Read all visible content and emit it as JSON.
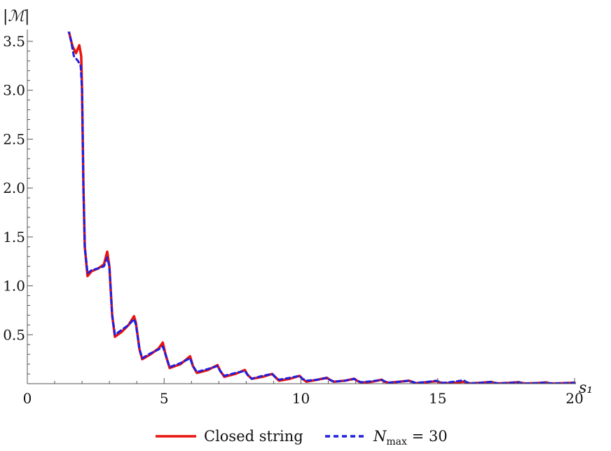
{
  "chart_data": {
    "type": "line",
    "title": "",
    "xlabel": "s₁",
    "ylabel": "|ℳ|",
    "xlim": [
      0,
      20
    ],
    "ylim": [
      0,
      3.6
    ],
    "x_ticks": [
      0,
      5,
      10,
      15,
      20
    ],
    "x_tick_labels": [
      "0",
      "5",
      "10",
      "15",
      "20"
    ],
    "y_ticks": [
      0.5,
      1.0,
      1.5,
      2.0,
      2.5,
      3.0,
      3.5
    ],
    "y_tick_labels": [
      "0.5",
      "1.0",
      "1.5",
      "2.0",
      "2.5",
      "3.0",
      "3.5"
    ],
    "grid": false,
    "legend_position": "bottom-center",
    "series": [
      {
        "name": "Closed string",
        "color": "#e8140f",
        "style": "solid",
        "points": [
          [
            1.5,
            3.62
          ],
          [
            1.65,
            3.45
          ],
          [
            1.78,
            3.38
          ],
          [
            1.9,
            3.46
          ],
          [
            1.97,
            3.35
          ],
          [
            2.0,
            3.0
          ],
          [
            2.05,
            2.0
          ],
          [
            2.1,
            1.4
          ],
          [
            2.2,
            1.1
          ],
          [
            2.35,
            1.15
          ],
          [
            2.6,
            1.18
          ],
          [
            2.8,
            1.22
          ],
          [
            2.92,
            1.35
          ],
          [
            3.0,
            1.2
          ],
          [
            3.1,
            0.7
          ],
          [
            3.2,
            0.48
          ],
          [
            3.45,
            0.53
          ],
          [
            3.7,
            0.6
          ],
          [
            3.9,
            0.69
          ],
          [
            3.97,
            0.62
          ],
          [
            4.1,
            0.35
          ],
          [
            4.2,
            0.25
          ],
          [
            4.5,
            0.3
          ],
          [
            4.8,
            0.36
          ],
          [
            4.95,
            0.42
          ],
          [
            5.05,
            0.3
          ],
          [
            5.2,
            0.16
          ],
          [
            5.6,
            0.2
          ],
          [
            5.95,
            0.28
          ],
          [
            6.05,
            0.18
          ],
          [
            6.2,
            0.11
          ],
          [
            6.6,
            0.14
          ],
          [
            6.95,
            0.19
          ],
          [
            7.05,
            0.13
          ],
          [
            7.2,
            0.07
          ],
          [
            7.6,
            0.1
          ],
          [
            7.95,
            0.14
          ],
          [
            8.05,
            0.09
          ],
          [
            8.2,
            0.05
          ],
          [
            8.6,
            0.07
          ],
          [
            8.95,
            0.1
          ],
          [
            9.05,
            0.07
          ],
          [
            9.2,
            0.03
          ],
          [
            9.6,
            0.05
          ],
          [
            9.95,
            0.08
          ],
          [
            10.05,
            0.05
          ],
          [
            10.2,
            0.02
          ],
          [
            10.6,
            0.04
          ],
          [
            10.95,
            0.06
          ],
          [
            11.05,
            0.04
          ],
          [
            11.2,
            0.02
          ],
          [
            11.6,
            0.03
          ],
          [
            11.95,
            0.05
          ],
          [
            12.05,
            0.03
          ],
          [
            12.2,
            0.01
          ],
          [
            12.6,
            0.02
          ],
          [
            12.95,
            0.04
          ],
          [
            13.05,
            0.02
          ],
          [
            13.2,
            0.01
          ],
          [
            13.6,
            0.02
          ],
          [
            13.95,
            0.03
          ],
          [
            14.05,
            0.02
          ],
          [
            14.2,
            0.005
          ],
          [
            14.6,
            0.015
          ],
          [
            14.95,
            0.025
          ],
          [
            15.05,
            0.015
          ],
          [
            15.2,
            0.005
          ],
          [
            15.6,
            0.01
          ],
          [
            15.95,
            0.02
          ],
          [
            16.05,
            0.01
          ],
          [
            16.2,
            0.003
          ],
          [
            16.6,
            0.01
          ],
          [
            16.95,
            0.018
          ],
          [
            17.05,
            0.01
          ],
          [
            17.2,
            0.003
          ],
          [
            17.6,
            0.008
          ],
          [
            17.95,
            0.015
          ],
          [
            18.05,
            0.008
          ],
          [
            18.2,
            0.002
          ],
          [
            18.6,
            0.006
          ],
          [
            18.95,
            0.012
          ],
          [
            19.05,
            0.006
          ],
          [
            19.2,
            0.002
          ],
          [
            19.6,
            0.005
          ],
          [
            20.0,
            0.01
          ]
        ]
      },
      {
        "name": "N_max = 30",
        "color": "#1f1fe0",
        "style": "dashed",
        "points": [
          [
            1.5,
            3.62
          ],
          [
            1.6,
            3.5
          ],
          [
            1.7,
            3.35
          ],
          [
            1.85,
            3.3
          ],
          [
            1.95,
            3.25
          ],
          [
            2.0,
            3.0
          ],
          [
            2.05,
            2.0
          ],
          [
            2.1,
            1.4
          ],
          [
            2.2,
            1.13
          ],
          [
            2.35,
            1.16
          ],
          [
            2.6,
            1.18
          ],
          [
            2.8,
            1.2
          ],
          [
            2.92,
            1.29
          ],
          [
            3.0,
            1.2
          ],
          [
            3.1,
            0.7
          ],
          [
            3.2,
            0.5
          ],
          [
            3.45,
            0.55
          ],
          [
            3.7,
            0.6
          ],
          [
            3.9,
            0.66
          ],
          [
            3.97,
            0.6
          ],
          [
            4.1,
            0.35
          ],
          [
            4.2,
            0.26
          ],
          [
            4.5,
            0.31
          ],
          [
            4.8,
            0.35
          ],
          [
            4.95,
            0.38
          ],
          [
            5.05,
            0.3
          ],
          [
            5.2,
            0.17
          ],
          [
            5.6,
            0.21
          ],
          [
            5.95,
            0.26
          ],
          [
            6.05,
            0.18
          ],
          [
            6.2,
            0.12
          ],
          [
            6.6,
            0.15
          ],
          [
            6.95,
            0.18
          ],
          [
            7.05,
            0.13
          ],
          [
            7.2,
            0.08
          ],
          [
            7.6,
            0.11
          ],
          [
            7.95,
            0.13
          ],
          [
            8.05,
            0.09
          ],
          [
            8.2,
            0.05
          ],
          [
            8.6,
            0.08
          ],
          [
            8.95,
            0.1
          ],
          [
            9.05,
            0.07
          ],
          [
            9.2,
            0.04
          ],
          [
            9.6,
            0.06
          ],
          [
            9.95,
            0.08
          ],
          [
            10.05,
            0.05
          ],
          [
            10.2,
            0.03
          ],
          [
            10.6,
            0.04
          ],
          [
            10.95,
            0.06
          ],
          [
            11.05,
            0.04
          ],
          [
            11.2,
            0.02
          ],
          [
            11.6,
            0.03
          ],
          [
            11.95,
            0.05
          ],
          [
            12.05,
            0.03
          ],
          [
            12.2,
            0.015
          ],
          [
            12.6,
            0.025
          ],
          [
            12.95,
            0.04
          ],
          [
            13.05,
            0.025
          ],
          [
            13.2,
            0.01
          ],
          [
            13.6,
            0.02
          ],
          [
            13.95,
            0.03
          ],
          [
            14.05,
            0.02
          ],
          [
            14.2,
            0.008
          ],
          [
            14.6,
            0.018
          ],
          [
            14.95,
            0.03
          ],
          [
            15.05,
            0.02
          ],
          [
            15.2,
            0.008
          ],
          [
            15.6,
            0.02
          ],
          [
            15.95,
            0.035
          ],
          [
            16.05,
            0.015
          ],
          [
            16.2,
            0.004
          ],
          [
            16.6,
            0.01
          ],
          [
            16.95,
            0.018
          ],
          [
            17.05,
            0.01
          ],
          [
            17.2,
            0.003
          ],
          [
            17.6,
            0.008
          ],
          [
            17.95,
            0.015
          ],
          [
            18.05,
            0.008
          ],
          [
            18.2,
            0.002
          ],
          [
            18.6,
            0.006
          ],
          [
            18.95,
            0.012
          ],
          [
            19.05,
            0.006
          ],
          [
            19.2,
            0.002
          ],
          [
            19.6,
            0.005
          ],
          [
            20.0,
            0.01
          ]
        ]
      }
    ],
    "legend": {
      "closed_label": "Closed string",
      "nmax_symbol": "N",
      "nmax_subscript": "max",
      "nmax_rest": " = 30"
    }
  }
}
